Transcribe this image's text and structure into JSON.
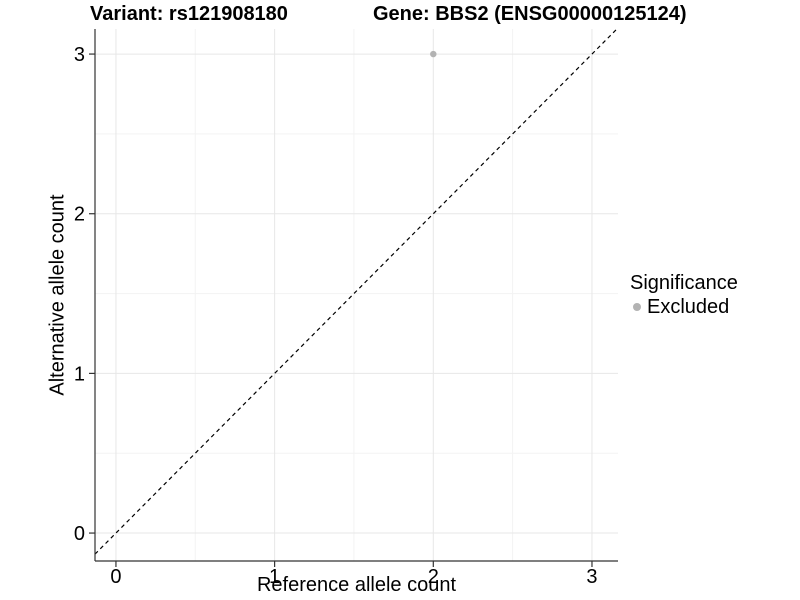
{
  "chart_data": {
    "type": "scatter",
    "title_left": "Variant: rs121908180",
    "title_right": "Gene: BBS2 (ENSG00000125124)",
    "xlabel": "Reference allele count",
    "ylabel": "Alternative allele count",
    "x_ticks": [
      0,
      1,
      2,
      3
    ],
    "y_ticks": [
      0,
      1,
      2,
      3
    ],
    "xlim": [
      -0.132,
      3.164
    ],
    "ylim": [
      -0.175,
      3.157
    ],
    "grid": {
      "major": true,
      "minor": true
    },
    "points": [
      {
        "x": 2,
        "y": 3,
        "significance": "Excluded"
      }
    ],
    "abline": {
      "slope": 1,
      "intercept": 0,
      "style": "dashed"
    },
    "legend": {
      "title": "Significance",
      "position": "right",
      "items": [
        {
          "label": "Excluded",
          "color": "#b3b3b3"
        }
      ]
    },
    "colors": {
      "point": "#b3b3b3",
      "grid_major": "#e7e7e7",
      "grid_minor": "#f3f3f3",
      "axis_line": "#333333",
      "tick": "#333333",
      "abline": "#000000",
      "text": "#000000",
      "background": "#ffffff"
    }
  }
}
